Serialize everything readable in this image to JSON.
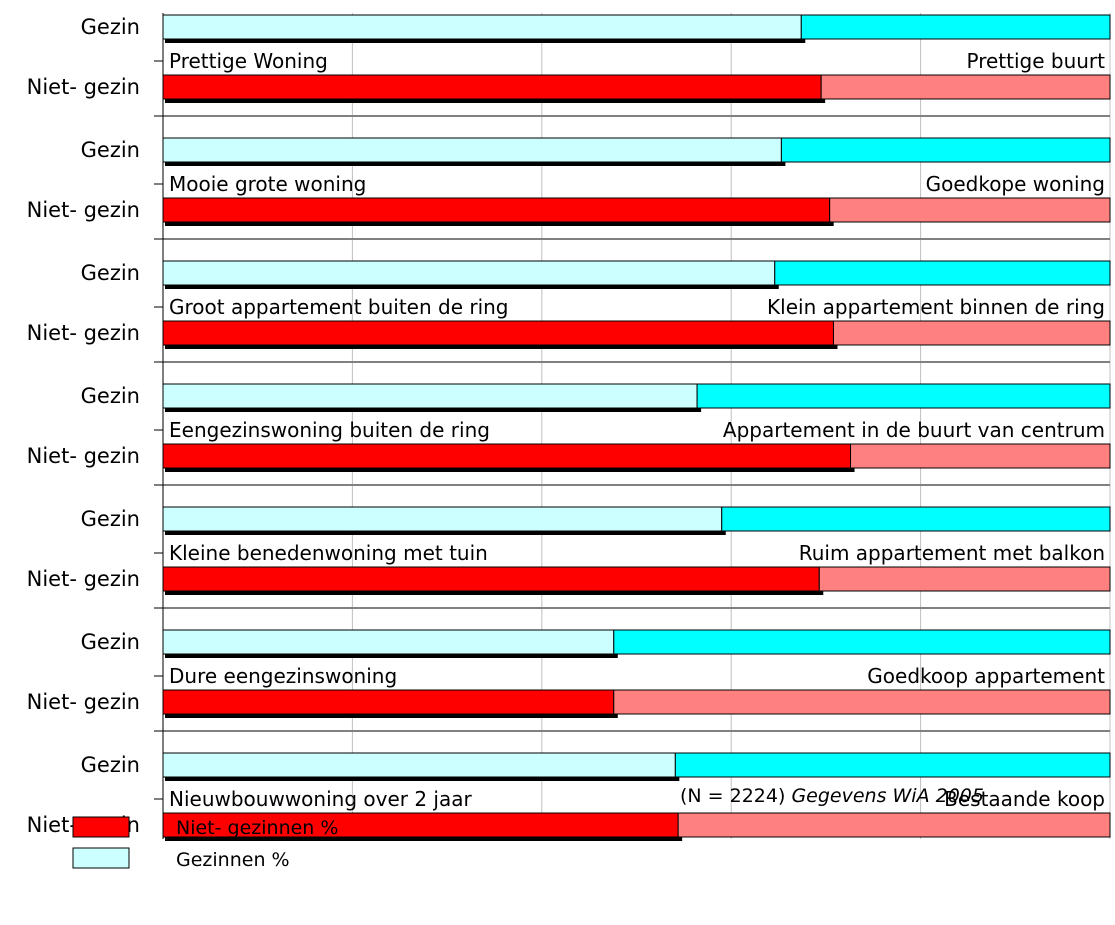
{
  "chart_data": {
    "type": "bar",
    "orientation": "horizontal",
    "stacked": true,
    "percent_scale": true,
    "xlim": [
      0,
      100
    ],
    "grid": true,
    "categories": [
      {
        "left": "Prettige Woning",
        "right": "Prettige buurt",
        "gezin": 67.4,
        "niet_gezin": 69.5
      },
      {
        "left": "Mooie grote woning",
        "right": "Goedkope woning",
        "gezin": 65.3,
        "niet_gezin": 70.4
      },
      {
        "left": "Groot appartement buiten de ring",
        "right": "Klein appartement binnen de ring",
        "gezin": 64.6,
        "niet_gezin": 70.8
      },
      {
        "left": "Eengezinswoning buiten de ring",
        "right": "Appartement in de buurt van centrum",
        "gezin": 56.4,
        "niet_gezin": 72.6
      },
      {
        "left": "Kleine benedenwoning met tuin",
        "right": "Ruim appartement met balkon",
        "gezin": 59.0,
        "niet_gezin": 69.3
      },
      {
        "left": "Dure eengezinswoning",
        "right": "Goedkoop appartement",
        "gezin": 47.6,
        "niet_gezin": 47.6
      },
      {
        "left": "Nieuwbouwwoning over 2 jaar",
        "right": "Bestaande koop",
        "gezin": 54.1,
        "niet_gezin": 54.4
      }
    ],
    "row_labels": {
      "gezin": "Gezin",
      "niet_gezin": "Niet- gezin"
    },
    "legend": {
      "position": "bottom-left",
      "items": [
        {
          "label": "Niet- gezinnen %",
          "color": "#ff0000"
        },
        {
          "label": "Gezinnen %",
          "color": "#ccffff"
        }
      ]
    },
    "note": {
      "prefix": "(N = 2224) ",
      "source": "Gegevens WiA 2005"
    },
    "colors": {
      "gezin_left": "#ccffff",
      "gezin_right": "#00ffff",
      "niet_left": "#ff0000",
      "niet_right": "#ff8080",
      "grid": "#c0c0c0",
      "axis": "#000000",
      "separator": "#808080"
    }
  }
}
